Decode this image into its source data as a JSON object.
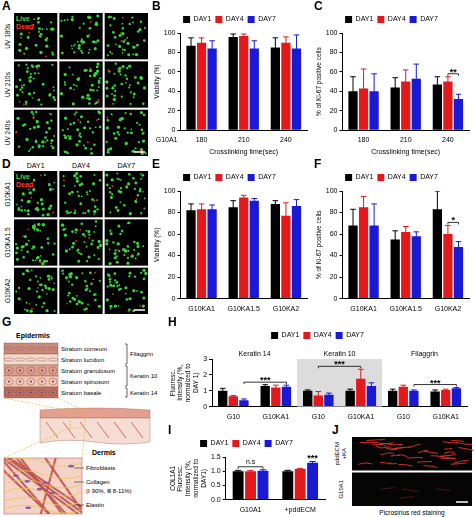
{
  "chart_data": [
    {
      "panel": "B",
      "type": "bar",
      "categories": [
        "180",
        "210",
        "240"
      ],
      "series": [
        {
          "name": "DAY1",
          "color": "#000000",
          "values": [
            87,
            96,
            85
          ],
          "errors": [
            8,
            3,
            10
          ]
        },
        {
          "name": "DAY4",
          "color": "#e3191c",
          "values": [
            90,
            97,
            90
          ],
          "errors": [
            5,
            2,
            6
          ]
        },
        {
          "name": "DAY7",
          "color": "#1a1ad6",
          "values": [
            84,
            84,
            84
          ],
          "errors": [
            8,
            8,
            14
          ]
        }
      ],
      "ylabel": "Viability (%)",
      "xlabel": "Crosslinking time(sec)",
      "ylim": [
        0,
        100
      ],
      "yticks": [
        0,
        20,
        40,
        60,
        80,
        100
      ],
      "grid": false,
      "legend": "top",
      "annotations": [
        {
          "text": "G10A1"
        }
      ]
    },
    {
      "panel": "C",
      "type": "bar",
      "categories": [
        "180",
        "210",
        "240"
      ],
      "series": [
        {
          "name": "DAY1",
          "color": "#000000",
          "values": [
            40,
            44,
            47
          ],
          "errors": [
            15,
            10,
            8
          ]
        },
        {
          "name": "DAY4",
          "color": "#e3191c",
          "values": [
            43,
            50,
            50
          ],
          "errors": [
            20,
            12,
            5
          ]
        },
        {
          "name": "DAY7",
          "color": "#1a1ad6",
          "values": [
            40,
            53,
            32
          ],
          "errors": [
            18,
            15,
            5
          ]
        }
      ],
      "ylabel": "% of Ki-67 positive cells",
      "xlabel": "Crosslinking time(sec)",
      "ylim": [
        0,
        100
      ],
      "yticks": [
        0,
        20,
        40,
        60,
        80,
        100
      ],
      "grid": false,
      "legend": "top",
      "annotations": [
        {
          "text": "**",
          "categories": [
            2,
            2
          ],
          "series": [
            1,
            2
          ]
        }
      ]
    },
    {
      "panel": "E",
      "type": "bar",
      "categories": [
        "G10KA1",
        "G10KA1.5",
        "G10KA2"
      ],
      "series": [
        {
          "name": "DAY1",
          "color": "#000000",
          "values": [
            82,
            85,
            88
          ],
          "errors": [
            6,
            6,
            3
          ]
        },
        {
          "name": "DAY4",
          "color": "#e3191c",
          "values": [
            83,
            94,
            77
          ],
          "errors": [
            5,
            2,
            12
          ]
        },
        {
          "name": "DAY7",
          "color": "#1a1ad6",
          "values": [
            83,
            91,
            86
          ],
          "errors": [
            4,
            2,
            6
          ]
        }
      ],
      "ylabel": "Viability (%)",
      "ylim": [
        0,
        100
      ],
      "yticks": [
        0,
        20,
        40,
        60,
        80,
        100
      ],
      "grid": false,
      "legend": "top"
    },
    {
      "panel": "F",
      "type": "bar",
      "categories": [
        "G10KA1",
        "G10KA1.5",
        "G10KA2"
      ],
      "series": [
        {
          "name": "DAY1",
          "color": "#000000",
          "values": [
            68,
            55,
            83
          ],
          "errors": [
            15,
            8,
            17
          ]
        },
        {
          "name": "DAY4",
          "color": "#e3191c",
          "values": [
            85,
            62,
            60
          ],
          "errors": [
            10,
            5,
            8
          ]
        },
        {
          "name": "DAY7",
          "color": "#1a1ad6",
          "values": [
            68,
            58,
            48
          ],
          "errors": [
            20,
            4,
            5
          ]
        }
      ],
      "ylabel": "% of Ki-67 positive cells",
      "ylim": [
        0,
        100
      ],
      "yticks": [
        0,
        20,
        40,
        60,
        80,
        100
      ],
      "grid": false,
      "legend": "top",
      "annotations": [
        {
          "text": "*",
          "categories": [
            2,
            2
          ],
          "series": [
            1,
            2
          ]
        }
      ]
    },
    {
      "panel": "H",
      "type": "bar",
      "categories": [
        "G10",
        "G10KA1",
        "G10",
        "G10KA1",
        "G10",
        "G10KA1"
      ],
      "groups": [
        {
          "name": "Keratin 14",
          "span": [
            0,
            1
          ]
        },
        {
          "name": "Keratin 10",
          "span": [
            2,
            3
          ]
        },
        {
          "name": "Filaggrin",
          "span": [
            4,
            5
          ]
        }
      ],
      "series": [
        {
          "name": "DAY1",
          "color": "#000000",
          "values": [
            1.0,
            1.3,
            1.0,
            1.0,
            1.0,
            0.95
          ],
          "errors": [
            0.15,
            0.08,
            0.05,
            0.1,
            0.1,
            0.1
          ]
        },
        {
          "name": "DAY4",
          "color": "#e3191c",
          "values": [
            0.65,
            1.2,
            0.7,
            1.75,
            1.25,
            1.05
          ],
          "errors": [
            0.05,
            0.15,
            0.25,
            0.6,
            0.1,
            0.05
          ]
        },
        {
          "name": "DAY7",
          "color": "#1a1ad6",
          "values": [
            0.4,
            1.25,
            0.75,
            1.3,
            1.0,
            1.15
          ],
          "errors": [
            0.08,
            0.1,
            0.1,
            0.2,
            0.05,
            0.05
          ]
        }
      ],
      "ylabel": "Fluoresc. Intensity (%, normalized to DAY 1)",
      "ylim": [
        0,
        3
      ],
      "yticks": [
        0,
        1,
        2,
        3
      ],
      "grid": false,
      "legend": "top",
      "annotations": [
        {
          "text": "***",
          "categories": [
            0,
            1
          ],
          "series": [
            2,
            2
          ]
        },
        {
          "text": "***",
          "categories": [
            2,
            3
          ],
          "series": [
            1,
            1
          ]
        },
        {
          "text": "***",
          "categories": [
            4,
            5
          ],
          "series": [
            2,
            2
          ]
        }
      ]
    },
    {
      "panel": "I",
      "type": "bar",
      "categories": [
        "G10A1",
        "+pddECM"
      ],
      "series": [
        {
          "name": "DAY1",
          "color": "#000000",
          "values": [
            1.0,
            1.0
          ],
          "errors": [
            0.03,
            0.03
          ]
        },
        {
          "name": "DAY4",
          "color": "#e3191c",
          "values": [
            1.0,
            1.08
          ],
          "errors": [
            0.03,
            0.02
          ]
        },
        {
          "name": "DAY7",
          "color": "#1a1ad6",
          "values": [
            1.02,
            1.3
          ],
          "errors": [
            0.03,
            0.04
          ]
        }
      ],
      "ylabel": "COL1A1 Fluoresc. Intensity (%, normalized to DAY1)",
      "ylim": [
        0,
        1.5
      ],
      "yticks": [
        {
          "value": 0,
          "label": "0.0"
        },
        0.5,
        {
          "value": 1,
          "label": "1.0"
        },
        1.5
      ],
      "grid": false,
      "legend": "top",
      "annotations": [
        {
          "text": "n.s",
          "categories": [
            0,
            0
          ],
          "series": [
            0,
            2
          ]
        },
        {
          "text": "***",
          "categories": [
            1,
            1
          ],
          "series": [
            2,
            2
          ]
        }
      ]
    }
  ],
  "image_panels": [
    {
      "panel": "A",
      "rows": [
        "UV 180s",
        "UV 210s",
        "UV 240s"
      ],
      "stain": [
        "Live",
        "Dead"
      ]
    },
    {
      "panel": "D",
      "columns": [
        "DAY1",
        "DAY4",
        "DAY7"
      ],
      "rows": [
        "G10KA1",
        "G10KA1.5",
        "G10KA2"
      ],
      "stain": [
        "Live",
        "Dead"
      ]
    },
    {
      "panel": "J",
      "rows": [
        "pddECM +KA",
        "G10A1"
      ],
      "caption": "Picrosirius red staining"
    }
  ],
  "diagram": {
    "panel": "G",
    "epidermis": "Epidermis",
    "layers": [
      "Stratum corneum",
      "Stratum lucidum",
      "Stratum granulosum",
      "Stratum spinosum",
      "Stratum basale"
    ],
    "markers": [
      {
        "label": "Filaggrin",
        "layers": [
          0,
          1
        ]
      },
      {
        "label": "Keratin 10",
        "layers": [
          2,
          3
        ]
      },
      {
        "label": "Keratin 14",
        "layers": [
          4,
          4
        ]
      }
    ],
    "dermis": "Dermis",
    "dermis_labels": [
      "Fibroblasts",
      "Collagen",
      "(Ⅰ 90%, Ⅲ 8-11%)",
      "Elastin"
    ]
  }
}
